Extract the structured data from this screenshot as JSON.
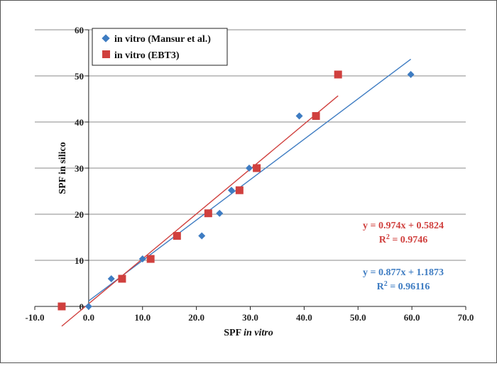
{
  "chart_data": {
    "type": "scatter",
    "xlabel": {
      "prefix": "SPF ",
      "italic": "in vitro"
    },
    "ylabel": "SPF in silico",
    "xlim": [
      -10,
      70
    ],
    "ylim": [
      0,
      60
    ],
    "x_ticks": [
      -10,
      0,
      10,
      20,
      30,
      40,
      50,
      60,
      70
    ],
    "x_tick_labels": [
      "-10.0",
      "0.0",
      "10.0",
      "20.0",
      "30.0",
      "40.0",
      "50.0",
      "60.0",
      "70.0"
    ],
    "y_ticks": [
      0,
      10,
      20,
      30,
      40,
      50,
      60
    ],
    "y_tick_labels": [
      "0",
      "10",
      "20",
      "30",
      "40",
      "50",
      "60"
    ],
    "grid": "horizontal",
    "legend_position": "top-left",
    "series": [
      {
        "name": "in vitro (Mansur et al.)",
        "marker": "diamond",
        "color": "#3e7cc2",
        "points": [
          [
            0,
            0
          ],
          [
            4.2,
            6
          ],
          [
            10,
            10.3
          ],
          [
            16.3,
            15.3
          ],
          [
            21,
            15.3
          ],
          [
            22.2,
            20.2
          ],
          [
            24.3,
            20.2
          ],
          [
            26.5,
            25.2
          ],
          [
            29.8,
            30
          ],
          [
            39.1,
            41.3
          ],
          [
            59.8,
            50.3
          ]
        ],
        "trendline": {
          "slope": 0.877,
          "intercept": 1.1873,
          "x_range": [
            0,
            59.8
          ]
        },
        "equation": "y = 0.877x + 1.1873",
        "r2_label": "R",
        "r2_value": " = 0.96116"
      },
      {
        "name": "in vitro (EBT3)",
        "marker": "square",
        "color": "#d0403e",
        "points": [
          [
            -5,
            0
          ],
          [
            6.2,
            6
          ],
          [
            11.5,
            10.3
          ],
          [
            16.4,
            15.3
          ],
          [
            22.2,
            20.2
          ],
          [
            28,
            25.2
          ],
          [
            31.2,
            30
          ],
          [
            42.2,
            41.3
          ],
          [
            46.3,
            50.3
          ]
        ],
        "trendline": {
          "slope": 0.974,
          "intercept": 0.5824,
          "x_range": [
            -5,
            46.3
          ]
        },
        "equation": "y = 0.974x + 0.5824",
        "r2_label": "R",
        "r2_value": " = 0.9746"
      }
    ]
  }
}
